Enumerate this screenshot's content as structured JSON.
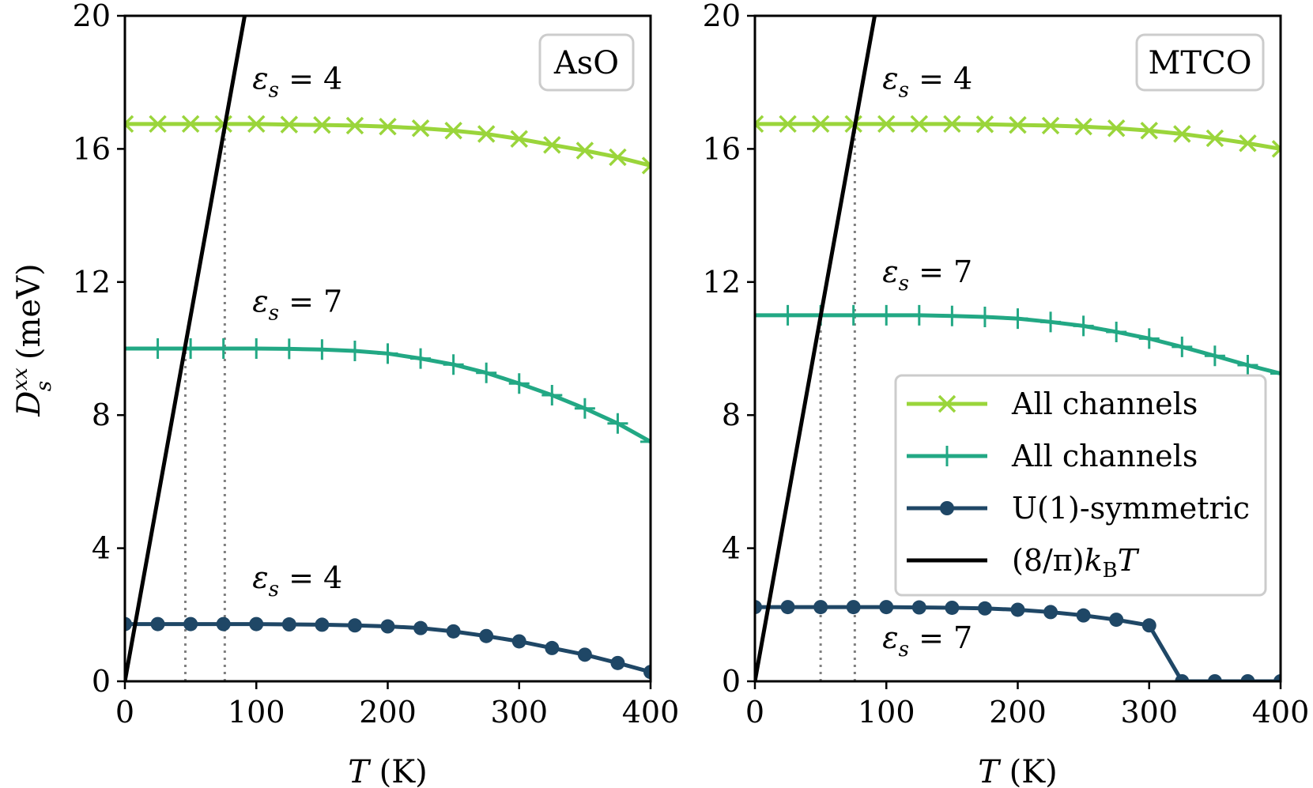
{
  "ylabel": "D",
  "ylabel_sub": "s",
  "ylabel_sup": "xx",
  "ylabel_unit": " (meV)",
  "chart_data": [
    {
      "type": "line",
      "panel_label": "AsO",
      "xlabel_var": "T",
      "xlabel_unit": " (K)",
      "xlim": [
        0,
        400
      ],
      "ylim": [
        0,
        20
      ],
      "xticks": [
        0,
        100,
        200,
        300,
        400
      ],
      "yticks": [
        0,
        4,
        8,
        12,
        16,
        20
      ],
      "x": [
        0,
        25,
        50,
        75,
        100,
        125,
        150,
        175,
        200,
        225,
        250,
        275,
        300,
        325,
        350,
        375,
        400
      ],
      "series": [
        {
          "name": "All channels",
          "marker": "x",
          "color": "#9ad53b",
          "values": [
            16.75,
            16.75,
            16.75,
            16.75,
            16.75,
            16.73,
            16.72,
            16.7,
            16.67,
            16.62,
            16.55,
            16.45,
            16.3,
            16.12,
            15.95,
            15.75,
            15.5
          ]
        },
        {
          "name": "All channels",
          "marker": "+",
          "color": "#22a884",
          "values": [
            10.0,
            10.0,
            10.0,
            10.0,
            10.0,
            9.99,
            9.97,
            9.93,
            9.85,
            9.7,
            9.52,
            9.27,
            8.95,
            8.6,
            8.2,
            7.75,
            7.2
          ]
        },
        {
          "name": "U(1)-symmetric",
          "marker": "o",
          "color": "#1f4766",
          "values": [
            1.72,
            1.72,
            1.72,
            1.72,
            1.72,
            1.71,
            1.7,
            1.68,
            1.65,
            1.6,
            1.5,
            1.36,
            1.2,
            1.0,
            0.8,
            0.55,
            0.28
          ]
        },
        {
          "name": "(8/π)k_B T",
          "marker": "none",
          "color": "#000000",
          "kind": "kBT"
        }
      ],
      "guides": [
        {
          "x": 46,
          "y_to": 10.0
        },
        {
          "x": 76,
          "y_to": 16.75
        }
      ],
      "annotations": [
        {
          "prefix": "ε",
          "sub": "s",
          "eq": " = 4",
          "at": [
            97,
            17.8
          ]
        },
        {
          "prefix": "ε",
          "sub": "s",
          "eq": " = 7",
          "at": [
            97,
            11.1
          ]
        },
        {
          "prefix": "ε",
          "sub": "s",
          "eq": " = 4",
          "at": [
            97,
            2.8
          ]
        }
      ]
    },
    {
      "type": "line",
      "panel_label": "MTCO",
      "xlabel_var": "T",
      "xlabel_unit": " (K)",
      "xlim": [
        0,
        400
      ],
      "ylim": [
        0,
        20
      ],
      "xticks": [
        0,
        100,
        200,
        300,
        400
      ],
      "yticks": [
        0,
        4,
        8,
        12,
        16,
        20
      ],
      "x": [
        0,
        25,
        50,
        75,
        100,
        125,
        150,
        175,
        200,
        225,
        250,
        275,
        300,
        325,
        350,
        375,
        400
      ],
      "series": [
        {
          "name": "All channels",
          "marker": "x",
          "color": "#9ad53b",
          "values": [
            16.75,
            16.75,
            16.75,
            16.75,
            16.75,
            16.75,
            16.75,
            16.74,
            16.72,
            16.7,
            16.67,
            16.62,
            16.55,
            16.45,
            16.32,
            16.17,
            16.0
          ]
        },
        {
          "name": "All channels",
          "marker": "+",
          "color": "#22a884",
          "values": [
            11.0,
            11.0,
            11.0,
            11.0,
            11.0,
            11.0,
            10.98,
            10.95,
            10.9,
            10.8,
            10.68,
            10.5,
            10.3,
            10.05,
            9.78,
            9.5,
            9.25
          ]
        },
        {
          "name": "U(1)-symmetric",
          "marker": "o",
          "color": "#1f4766",
          "values": [
            2.23,
            2.23,
            2.23,
            2.23,
            2.23,
            2.22,
            2.21,
            2.19,
            2.15,
            2.08,
            1.98,
            1.85,
            1.68,
            0.0,
            0.0,
            0.0,
            0.0
          ]
        },
        {
          "name": "(8/π)k_B T",
          "marker": "none",
          "color": "#000000",
          "kind": "kBT"
        }
      ],
      "guides": [
        {
          "x": 50,
          "y_to": 11.0
        },
        {
          "x": 76,
          "y_to": 16.75
        }
      ],
      "annotations": [
        {
          "prefix": "ε",
          "sub": "s",
          "eq": " = 4",
          "at": [
            97,
            17.8
          ]
        },
        {
          "prefix": "ε",
          "sub": "s",
          "eq": " = 7",
          "at": [
            97,
            12.0
          ]
        },
        {
          "prefix": "ε",
          "sub": "s",
          "eq": " = 7",
          "at": [
            97,
            1.0
          ]
        }
      ],
      "legend": {
        "placement": "center-right",
        "entries": [
          {
            "label": "All channels",
            "marker": "x",
            "color": "#9ad53b"
          },
          {
            "label": "All channels",
            "marker": "+",
            "color": "#22a884"
          },
          {
            "label": "U(1)-symmetric",
            "marker": "o",
            "color": "#1f4766"
          },
          {
            "label_prefix": "(8/π)",
            "label_k": "k",
            "label_sub": "B",
            "label_T": "T",
            "marker": "none",
            "color": "#000000"
          }
        ]
      }
    }
  ]
}
